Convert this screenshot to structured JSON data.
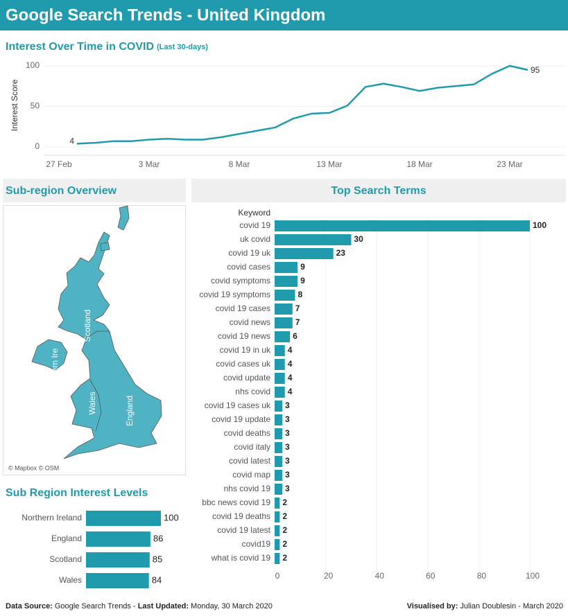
{
  "header": {
    "title": "Google Search Trends - United Kingdom"
  },
  "chart_data": [
    {
      "type": "line",
      "title": "Interest Over Time in COVID",
      "subtitle": "(Last 30-days)",
      "y_label": "Interest Score",
      "x": [
        "27 Feb",
        "28 Feb",
        "29 Feb",
        "1 Mar",
        "2 Mar",
        "3 Mar",
        "4 Mar",
        "5 Mar",
        "6 Mar",
        "7 Mar",
        "8 Mar",
        "9 Mar",
        "10 Mar",
        "11 Mar",
        "12 Mar",
        "13 Mar",
        "14 Mar",
        "15 Mar",
        "16 Mar",
        "17 Mar",
        "18 Mar",
        "19 Mar",
        "20 Mar",
        "21 Mar",
        "22 Mar",
        "23 Mar",
        "24 Mar"
      ],
      "values": [
        null,
        4,
        5,
        7,
        7,
        9,
        10,
        9,
        9,
        12,
        16,
        20,
        24,
        35,
        41,
        42,
        51,
        74,
        78,
        74,
        69,
        73,
        75,
        77,
        90,
        100,
        95
      ],
      "xticks": [
        "27 Feb",
        "3 Mar",
        "8 Mar",
        "13 Mar",
        "18 Mar",
        "23 Mar"
      ],
      "ylim": [
        -5,
        105
      ],
      "yticks": [
        0,
        50,
        100
      ],
      "grid": true,
      "color": "#1f9bad"
    },
    {
      "type": "bar",
      "title": "Top Search Terms",
      "category_label": "Keyword",
      "categories": [
        "covid 19",
        "uk covid",
        "covid 19 uk",
        "covid cases",
        "covid symptoms",
        "covid 19 symptoms",
        "covid 19 cases",
        "covid news",
        "covid 19 news",
        "covid 19 in uk",
        "covid cases uk",
        "covid update",
        "nhs covid",
        "covid 19 cases uk",
        "covid 19 update",
        "covid deaths",
        "covid italy",
        "covid latest",
        "covid map",
        "nhs covid 19",
        "bbc news covid 19",
        "covid 19 deaths",
        "covid 19 latest",
        "covid19",
        "what is covid 19"
      ],
      "values": [
        100,
        30,
        23,
        9,
        9,
        8,
        7,
        7,
        6,
        4,
        4,
        4,
        4,
        3,
        3,
        3,
        3,
        3,
        3,
        3,
        2,
        2,
        2,
        2,
        2
      ],
      "xlim": [
        0,
        100
      ],
      "xticks": [
        0,
        20,
        40,
        60,
        80,
        100
      ],
      "grid": true,
      "color": "#1f9bad"
    },
    {
      "type": "bar",
      "title": "Sub Region Interest Levels",
      "categories": [
        "Northern Ireland",
        "England",
        "Scotland",
        "Wales"
      ],
      "values": [
        100,
        86,
        85,
        84
      ],
      "xlim": [
        0,
        100
      ],
      "color": "#1f9bad"
    }
  ],
  "map": {
    "title": "Sub-region Overview",
    "labels": [
      "Scotland",
      "ern Ire",
      "Wales",
      "England"
    ],
    "attribution": "© Mapbox © OSM"
  },
  "footer": {
    "source_label": "Data Source:",
    "source": "Google Search Trends - ",
    "updated_label": "Last Updated:",
    "updated": "Monday, 30 March 2020",
    "credit_label": "Visualised by:",
    "credit": "Julian Doublesin - March 2020"
  }
}
